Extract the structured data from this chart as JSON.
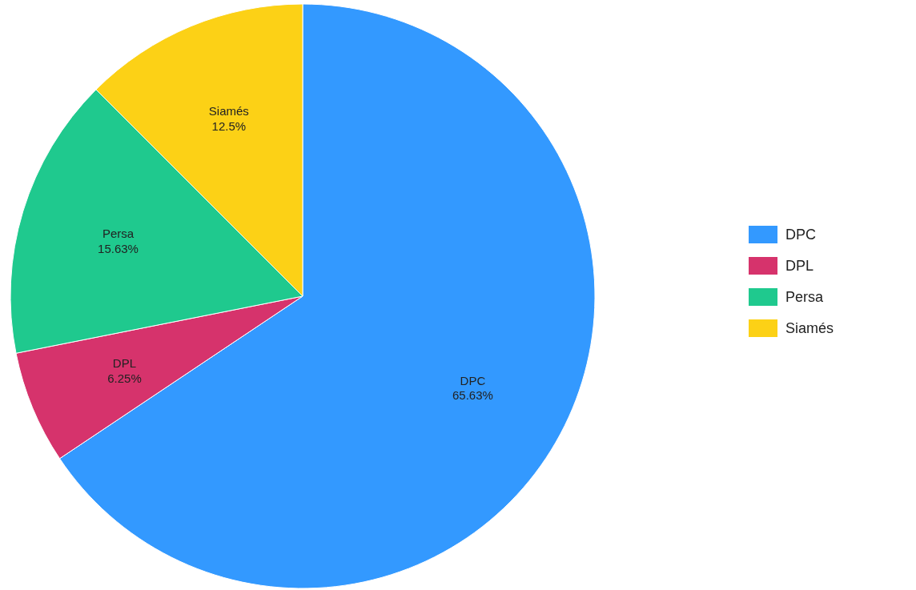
{
  "chart_data": {
    "type": "pie",
    "categories": [
      "DPC",
      "DPL",
      "Persa",
      "Siamés"
    ],
    "values": [
      65.63,
      6.25,
      15.63,
      12.5
    ],
    "colors": [
      "#3399ff",
      "#d6336c",
      "#1fc98e",
      "#fcd116"
    ],
    "value_labels": [
      "65.63%",
      "6.25%",
      "15.63%",
      "12.5%"
    ],
    "legend": "right"
  }
}
